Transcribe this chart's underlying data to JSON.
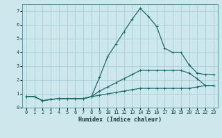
{
  "title": "",
  "xlabel": "Humidex (Indice chaleur)",
  "ylabel": "",
  "bg_color": "#cce8ed",
  "line_color": "#1a6b6b",
  "grid_color": "#a8cdd4",
  "xlim": [
    -0.5,
    23.5
  ],
  "ylim": [
    0,
    7.5
  ],
  "xticks": [
    0,
    1,
    2,
    3,
    4,
    5,
    6,
    7,
    8,
    9,
    10,
    11,
    12,
    13,
    14,
    15,
    16,
    17,
    18,
    19,
    20,
    21,
    22,
    23
  ],
  "yticks": [
    0,
    1,
    2,
    3,
    4,
    5,
    6,
    7
  ],
  "line1_x": [
    0,
    1,
    2,
    3,
    4,
    5,
    6,
    7,
    8,
    9,
    10,
    11,
    12,
    13,
    14,
    15,
    16,
    17,
    18,
    19,
    20,
    21,
    22,
    23
  ],
  "line1_y": [
    0.8,
    0.8,
    0.5,
    0.6,
    0.65,
    0.65,
    0.65,
    0.65,
    0.8,
    2.2,
    3.7,
    4.6,
    5.5,
    6.4,
    7.2,
    6.6,
    5.9,
    4.3,
    4.0,
    4.0,
    3.1,
    2.5,
    2.4,
    2.4
  ],
  "line2_x": [
    0,
    1,
    2,
    3,
    4,
    5,
    6,
    7,
    8,
    9,
    10,
    11,
    12,
    13,
    14,
    15,
    16,
    17,
    18,
    19,
    20,
    21,
    22,
    23
  ],
  "line2_y": [
    0.8,
    0.8,
    0.5,
    0.6,
    0.65,
    0.65,
    0.65,
    0.65,
    0.8,
    1.2,
    1.5,
    1.8,
    2.1,
    2.4,
    2.7,
    2.7,
    2.7,
    2.7,
    2.7,
    2.7,
    2.5,
    2.1,
    1.6,
    1.6
  ],
  "line3_x": [
    0,
    1,
    2,
    3,
    4,
    5,
    6,
    7,
    8,
    9,
    10,
    11,
    12,
    13,
    14,
    15,
    16,
    17,
    18,
    19,
    20,
    21,
    22,
    23
  ],
  "line3_y": [
    0.8,
    0.8,
    0.5,
    0.6,
    0.65,
    0.65,
    0.65,
    0.65,
    0.8,
    0.9,
    1.0,
    1.1,
    1.2,
    1.3,
    1.4,
    1.4,
    1.4,
    1.4,
    1.4,
    1.4,
    1.4,
    1.5,
    1.6,
    1.6
  ],
  "xlabel_fontsize": 6,
  "tick_fontsize": 5,
  "linewidth": 0.9,
  "markersize": 3
}
